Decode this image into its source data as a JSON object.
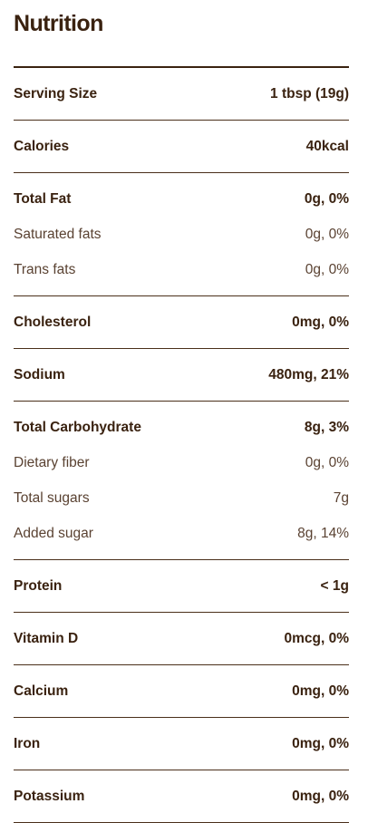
{
  "title": "Nutrition",
  "groups": [
    {
      "rows": [
        {
          "label": "Serving Size",
          "value": "1 tbsp (19g)",
          "bold": true
        }
      ]
    },
    {
      "rows": [
        {
          "label": "Calories",
          "value": "40kcal",
          "bold": true
        }
      ]
    },
    {
      "rows": [
        {
          "label": "Total Fat",
          "value": "0g, 0%",
          "bold": true
        },
        {
          "label": "Saturated fats",
          "value": "0g, 0%",
          "bold": false
        },
        {
          "label": "Trans fats",
          "value": "0g, 0%",
          "bold": false
        }
      ]
    },
    {
      "rows": [
        {
          "label": "Cholesterol",
          "value": "0mg, 0%",
          "bold": true
        }
      ]
    },
    {
      "rows": [
        {
          "label": "Sodium",
          "value": "480mg, 21%",
          "bold": true
        }
      ]
    },
    {
      "rows": [
        {
          "label": "Total Carbohydrate",
          "value": "8g, 3%",
          "bold": true
        },
        {
          "label": "Dietary fiber",
          "value": "0g, 0%",
          "bold": false
        },
        {
          "label": "Total sugars",
          "value": "7g",
          "bold": false
        },
        {
          "label": "Added sugar",
          "value": "8g, 14%",
          "bold": false
        }
      ]
    },
    {
      "rows": [
        {
          "label": "Protein",
          "value": "< 1g",
          "bold": true
        }
      ]
    },
    {
      "rows": [
        {
          "label": "Vitamin D",
          "value": "0mcg, 0%",
          "bold": true
        }
      ]
    },
    {
      "rows": [
        {
          "label": "Calcium",
          "value": "0mg, 0%",
          "bold": true
        }
      ]
    },
    {
      "rows": [
        {
          "label": "Iron",
          "value": "0mg, 0%",
          "bold": true
        }
      ]
    },
    {
      "rows": [
        {
          "label": "Potassium",
          "value": "0mg, 0%",
          "bold": true
        }
      ]
    }
  ],
  "colors": {
    "text": "#3a2210",
    "rule": "#4a2f1a"
  }
}
